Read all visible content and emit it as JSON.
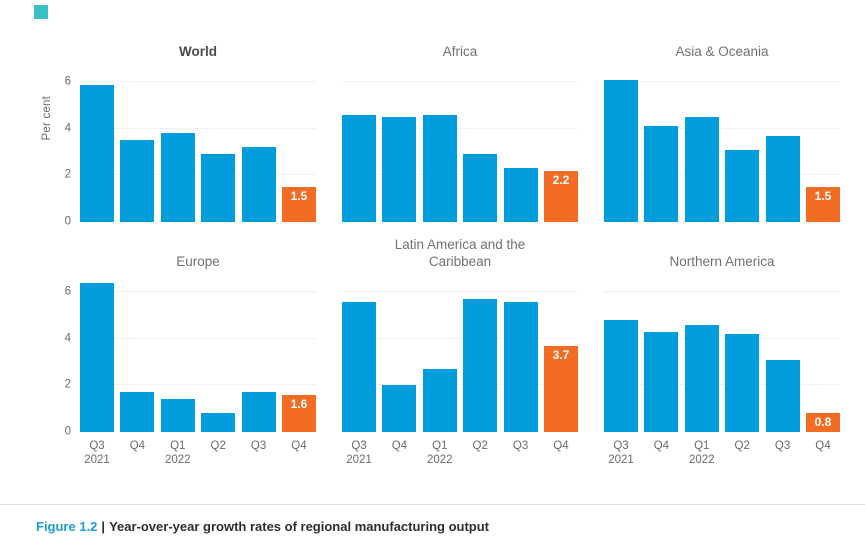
{
  "brand": {
    "corner_square_color": "#3abfc2",
    "bar_color": "#009ddc",
    "highlight_color": "#f36c23",
    "gridline_color": "#f0f0f0"
  },
  "caption": {
    "label": "Figure 1.2",
    "separator": "|",
    "title": "Year-over-year growth rates of regional manufacturing output"
  },
  "axis": {
    "ylabel": "Per cent",
    "yticks": [
      6,
      4,
      2,
      0
    ],
    "gridline_values": [
      2,
      4,
      6
    ],
    "xlabels": [
      {
        "line1": "Q3",
        "line2": "2021"
      },
      {
        "line1": "Q4",
        "line2": ""
      },
      {
        "line1": "Q1",
        "line2": "2022"
      },
      {
        "line1": "Q2",
        "line2": ""
      },
      {
        "line1": "Q3",
        "line2": ""
      },
      {
        "line1": "Q4",
        "line2": ""
      }
    ]
  },
  "chart_data": [
    {
      "type": "bar",
      "title": "World",
      "title_emphasis": true,
      "ylabel": "Per cent",
      "show_yticks": true,
      "show_ylabel": true,
      "show_xlabels": false,
      "categories": [
        "Q3 2021",
        "Q4 2021",
        "Q1 2022",
        "Q2 2022",
        "Q3 2022",
        "Q4 2022"
      ],
      "values": [
        5.9,
        3.5,
        3.8,
        2.9,
        3.2,
        1.5
      ],
      "highlight": {
        "index": 5,
        "label": "1.5"
      },
      "ylim": [
        0,
        6.5
      ],
      "grid": true,
      "legend": false
    },
    {
      "type": "bar",
      "title": "Africa",
      "title_emphasis": false,
      "show_yticks": false,
      "show_ylabel": false,
      "show_xlabels": false,
      "categories": [
        "Q3 2021",
        "Q4 2021",
        "Q1 2022",
        "Q2 2022",
        "Q3 2022",
        "Q4 2022"
      ],
      "values": [
        4.6,
        4.5,
        4.6,
        2.9,
        2.3,
        2.2
      ],
      "highlight": {
        "index": 5,
        "label": "2.2"
      },
      "ylim": [
        0,
        6.5
      ],
      "grid": true,
      "legend": false
    },
    {
      "type": "bar",
      "title": "Asia & Oceania",
      "title_emphasis": false,
      "show_yticks": false,
      "show_ylabel": false,
      "show_xlabels": false,
      "categories": [
        "Q3 2021",
        "Q4 2021",
        "Q1 2022",
        "Q2 2022",
        "Q3 2022",
        "Q4 2022"
      ],
      "values": [
        6.1,
        4.1,
        4.5,
        3.1,
        3.7,
        1.5
      ],
      "highlight": {
        "index": 5,
        "label": "1.5"
      },
      "ylim": [
        0,
        6.5
      ],
      "grid": true,
      "legend": false
    },
    {
      "type": "bar",
      "title": "Europe",
      "title_emphasis": false,
      "show_yticks": true,
      "show_ylabel": false,
      "show_xlabels": true,
      "categories": [
        "Q3 2021",
        "Q4 2021",
        "Q1 2022",
        "Q2 2022",
        "Q3 2022",
        "Q4 2022"
      ],
      "values": [
        6.4,
        1.7,
        1.4,
        0.8,
        1.7,
        1.6
      ],
      "highlight": {
        "index": 5,
        "label": "1.6"
      },
      "ylim": [
        0,
        6.5
      ],
      "grid": true,
      "legend": false
    },
    {
      "type": "bar",
      "title": "Latin America and the Caribbean",
      "title_emphasis": false,
      "show_yticks": false,
      "show_ylabel": false,
      "show_xlabels": true,
      "categories": [
        "Q3 2021",
        "Q4 2021",
        "Q1 2022",
        "Q2 2022",
        "Q3 2022",
        "Q4 2022"
      ],
      "values": [
        5.6,
        2.0,
        2.7,
        5.7,
        5.6,
        3.7
      ],
      "highlight": {
        "index": 5,
        "label": "3.7"
      },
      "ylim": [
        0,
        6.5
      ],
      "grid": true,
      "legend": false
    },
    {
      "type": "bar",
      "title": "Northern America",
      "title_emphasis": false,
      "show_yticks": false,
      "show_ylabel": false,
      "show_xlabels": true,
      "categories": [
        "Q3 2021",
        "Q4 2021",
        "Q1 2022",
        "Q2 2022",
        "Q3 2022",
        "Q4 2022"
      ],
      "values": [
        4.8,
        4.3,
        4.6,
        4.2,
        3.1,
        0.8
      ],
      "highlight": {
        "index": 5,
        "label": "0.8"
      },
      "ylim": [
        0,
        6.5
      ],
      "grid": true,
      "legend": false
    }
  ]
}
